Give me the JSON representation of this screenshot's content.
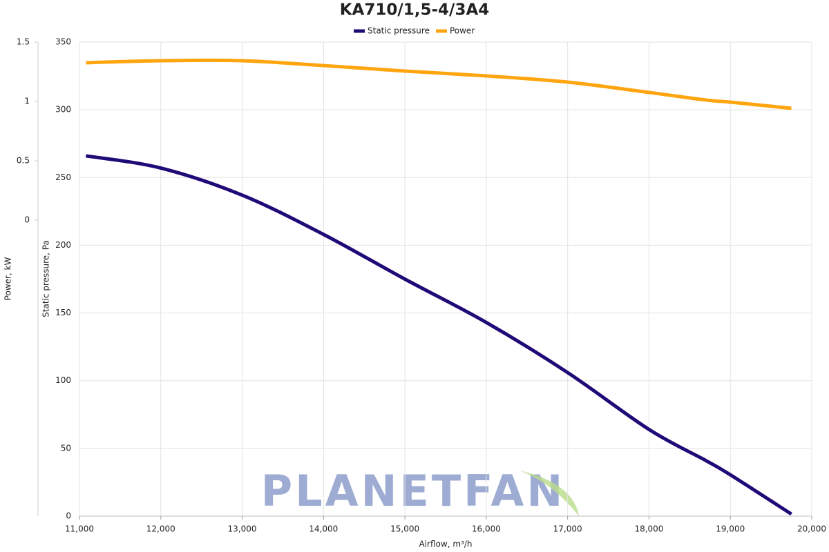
{
  "chart_data": {
    "type": "line",
    "title": "KA710/1,5-4/3A4",
    "xlabel": "Airflow, m³/h",
    "ylabel": "Static pressure, Pa",
    "y2label": "Power, kW",
    "watermark": "PLANETFAN",
    "x": [
      11080,
      12000,
      13000,
      14000,
      15000,
      16000,
      17000,
      18000,
      18700,
      19000,
      19750
    ],
    "series": [
      {
        "name": "Static pressure",
        "color": "#1f0a78",
        "values": [
          266,
          257,
          237,
          208,
          175,
          143,
          106,
          64,
          41,
          30.5,
          1.5
        ]
      },
      {
        "name": "Power",
        "color": "#ffa50f",
        "axis": "y2",
        "values": [
          1.326,
          1.343,
          1.343,
          1.302,
          1.256,
          1.215,
          1.163,
          1.076,
          1.012,
          0.994,
          0.942
        ]
      }
    ],
    "xlim": [
      11000,
      20000
    ],
    "xticks": [
      {
        "value": 11000,
        "label": "11,000"
      },
      {
        "value": 12000,
        "label": "12,000"
      },
      {
        "value": 13000,
        "label": "13,000"
      },
      {
        "value": 14000,
        "label": "14,000"
      },
      {
        "value": 15000,
        "label": "15,000"
      },
      {
        "value": 16000,
        "label": "16,000"
      },
      {
        "value": 17000,
        "label": "17,000"
      },
      {
        "value": 18000,
        "label": "18,000"
      },
      {
        "value": 19000,
        "label": "19,000"
      },
      {
        "value": 20000,
        "label": "20,000"
      }
    ],
    "ylim": [
      0,
      350
    ],
    "yticks": [
      0,
      50,
      100,
      150,
      200,
      250,
      300,
      350
    ],
    "y2lim": [
      -2.494,
      1.5
    ],
    "y2ticks": [
      0,
      0.5,
      1,
      1.5
    ],
    "grid": true,
    "legend": "top"
  }
}
